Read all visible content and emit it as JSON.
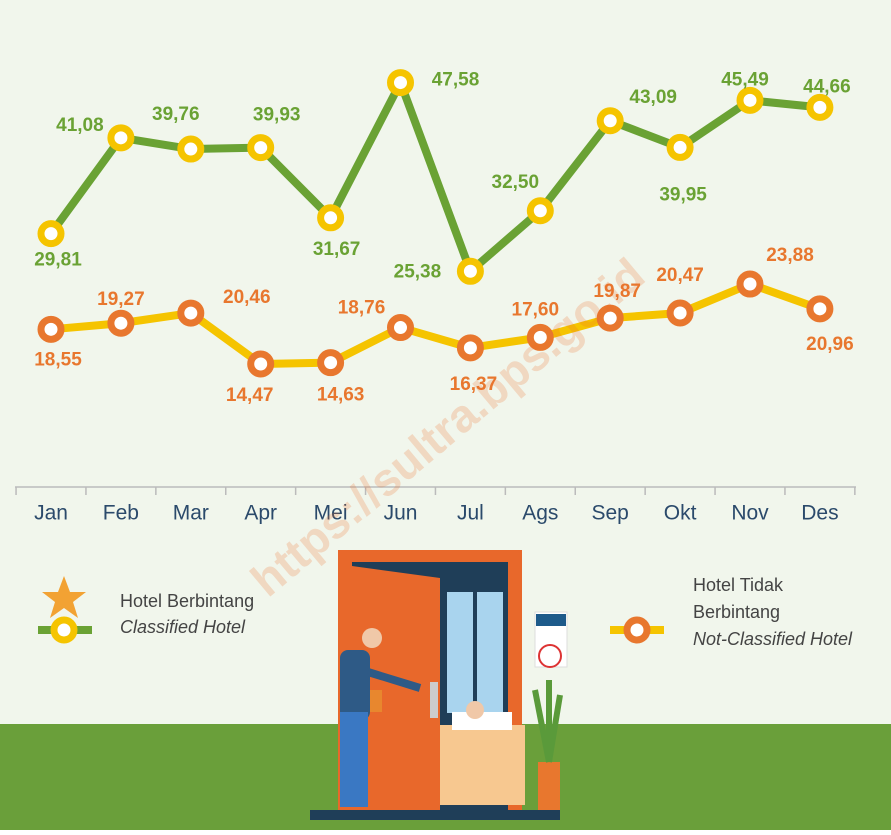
{
  "chart_data": {
    "type": "line",
    "watermark": "https://sultra.bps.go.id",
    "categories": [
      "Jan",
      "Feb",
      "Mar",
      "Apr",
      "Mei",
      "Jun",
      "Jul",
      "Ags",
      "Sep",
      "Okt",
      "Nov",
      "Des"
    ],
    "ylim": [
      0,
      56
    ],
    "series": [
      {
        "name": "Hotel Berbintang",
        "name_en": "Classified Hotel",
        "color": "#6aa234",
        "marker_color": "#f5c400",
        "label_color": "#6aa234",
        "values": [
          29.81,
          41.08,
          39.76,
          39.93,
          31.67,
          47.58,
          25.38,
          32.5,
          43.09,
          39.95,
          45.49,
          44.66
        ],
        "value_labels": [
          "29,81",
          "41,08",
          "39,76",
          "39,93",
          "31,67",
          "47,58",
          "25,38",
          "32,50",
          "43,09",
          "39,95",
          "45,49",
          "44,66"
        ]
      },
      {
        "name": "Hotel Tidak Berbintang",
        "name_en": "Not-Classified Hotel",
        "color": "#f5c400",
        "marker_color": "#e8772e",
        "label_color": "#e8772e",
        "values": [
          18.55,
          19.27,
          20.46,
          14.47,
          14.63,
          18.76,
          16.37,
          17.6,
          19.87,
          20.47,
          23.88,
          20.96
        ],
        "value_labels": [
          "18,55",
          "19,27",
          "20,46",
          "14,47",
          "14,63",
          "18,76",
          "16,37",
          "17,60",
          "19,87",
          "20,47",
          "23,88",
          "20,96"
        ]
      }
    ]
  }
}
